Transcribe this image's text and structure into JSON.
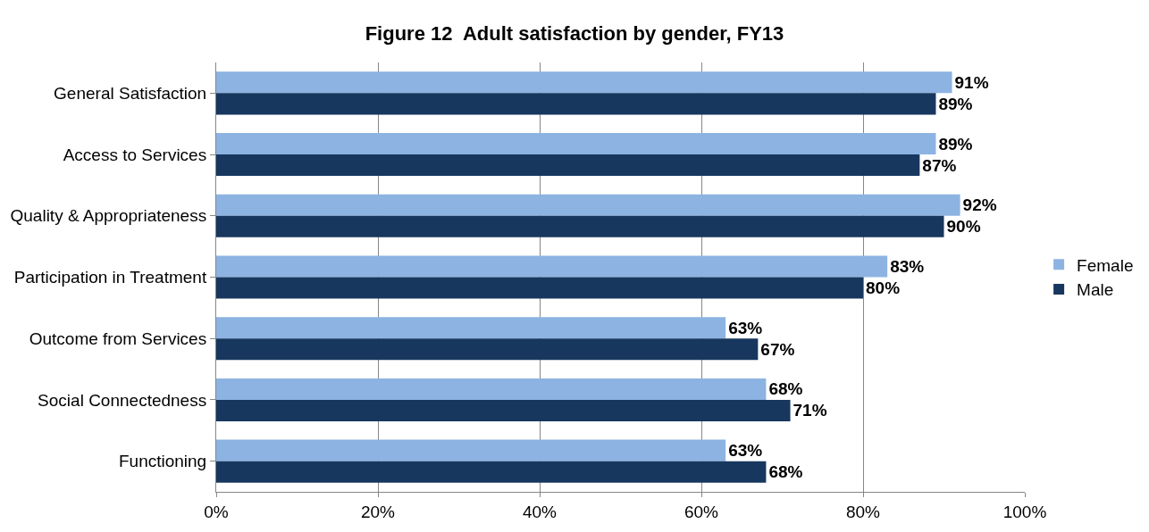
{
  "chart_data": {
    "type": "bar",
    "orientation": "horizontal",
    "title": "Figure 12  Adult satisfaction by gender, FY13",
    "categories": [
      "General Satisfaction",
      "Access to Services",
      "Quality & Appropriateness",
      "Participation in Treatment",
      "Outcome from Services",
      "Social Connectedness",
      "Functioning"
    ],
    "series": [
      {
        "name": "Female",
        "color": "#8db3e2",
        "values": [
          91,
          89,
          92,
          83,
          63,
          68,
          63
        ],
        "value_labels": [
          "91%",
          "89%",
          "92%",
          "83%",
          "63%",
          "68%",
          "63%"
        ]
      },
      {
        "name": "Male",
        "color": "#17375e",
        "values": [
          89,
          87,
          90,
          80,
          67,
          71,
          68
        ],
        "value_labels": [
          "89%",
          "87%",
          "90%",
          "80%",
          "67%",
          "71%",
          "68%"
        ]
      }
    ],
    "xlim": [
      0,
      100
    ],
    "xticks": [
      {
        "value": 0,
        "label": "0%"
      },
      {
        "value": 20,
        "label": "20%"
      },
      {
        "value": 40,
        "label": "40%"
      },
      {
        "value": 60,
        "label": "60%"
      },
      {
        "value": 80,
        "label": "80%"
      },
      {
        "value": 100,
        "label": "100%"
      }
    ],
    "grid": "x",
    "legend": "right"
  }
}
